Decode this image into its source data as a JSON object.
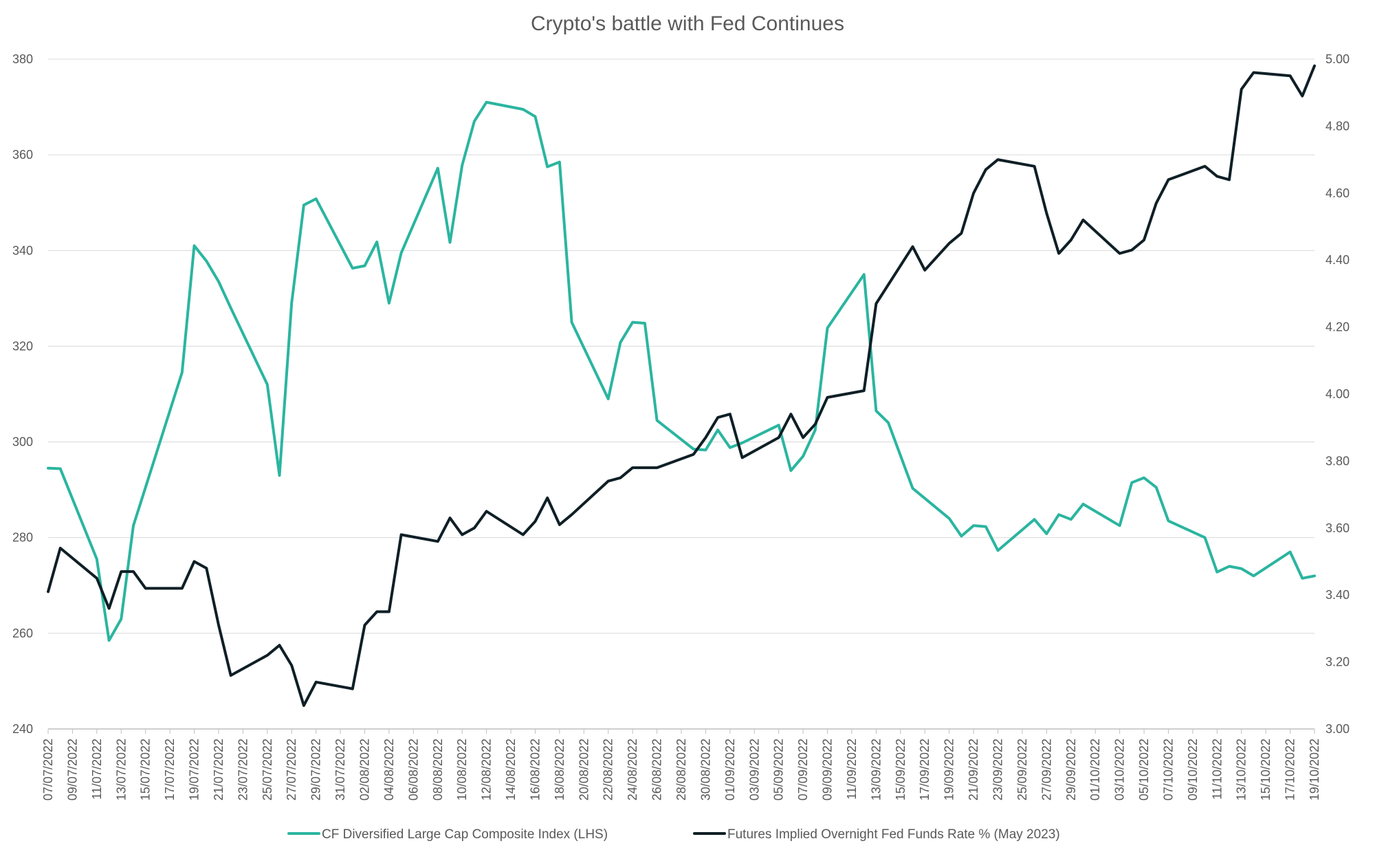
{
  "colors": {
    "lhs_series": "#2bb5a0",
    "rhs_series": "#0f1f26",
    "grid": "#d9d9d9",
    "text": "#595959"
  },
  "chart_data": {
    "type": "line",
    "title": "Crypto's battle with Fed Continues",
    "grid": true,
    "legend_position": "bottom",
    "x_tick_labels": [
      "07/07/2022",
      "09/07/2022",
      "11/07/2022",
      "13/07/2022",
      "15/07/2022",
      "17/07/2022",
      "19/07/2022",
      "21/07/2022",
      "23/07/2022",
      "25/07/2022",
      "27/07/2022",
      "29/07/2022",
      "31/07/2022",
      "02/08/2022",
      "04/08/2022",
      "06/08/2022",
      "08/08/2022",
      "10/08/2022",
      "12/08/2022",
      "14/08/2022",
      "16/08/2022",
      "18/08/2022",
      "20/08/2022",
      "22/08/2022",
      "24/08/2022",
      "26/08/2022",
      "28/08/2022",
      "30/08/2022",
      "01/09/2022",
      "03/09/2022",
      "05/09/2022",
      "07/09/2022",
      "09/09/2022",
      "11/09/2022",
      "13/09/2022",
      "15/09/2022",
      "17/09/2022",
      "19/09/2022",
      "21/09/2022",
      "23/09/2022",
      "25/09/2022",
      "27/09/2022",
      "29/09/2022",
      "01/10/2022",
      "03/10/2022",
      "05/10/2022",
      "07/10/2022",
      "09/10/2022",
      "11/10/2022",
      "13/10/2022",
      "15/10/2022",
      "17/10/2022",
      "19/10/2022"
    ],
    "y_left": {
      "ylim": [
        240,
        380
      ],
      "ticks": [
        "240",
        "260",
        "280",
        "300",
        "320",
        "340",
        "360",
        "380"
      ]
    },
    "y_right": {
      "ylim": [
        3.0,
        5.0
      ],
      "ticks": [
        "3.00",
        "3.20",
        "3.40",
        "3.60",
        "3.80",
        "4.00",
        "4.20",
        "4.40",
        "4.60",
        "4.80",
        "5.00"
      ]
    },
    "series": [
      {
        "name": "CF Diversified Large Cap Composite Index (LHS)",
        "axis": "left",
        "points": [
          [
            "07/07/2022",
            294.5
          ],
          [
            "08/07/2022",
            294.4
          ],
          [
            "11/07/2022",
            275.5
          ],
          [
            "12/07/2022",
            258.5
          ],
          [
            "13/07/2022",
            263.0
          ],
          [
            "14/07/2022",
            282.5
          ],
          [
            "18/07/2022",
            314.5
          ],
          [
            "19/07/2022",
            341.0
          ],
          [
            "20/07/2022",
            337.8
          ],
          [
            "21/07/2022",
            333.5
          ],
          [
            "22/07/2022",
            328.0
          ],
          [
            "25/07/2022",
            312.0
          ],
          [
            "26/07/2022",
            293.0
          ],
          [
            "27/07/2022",
            329.0
          ],
          [
            "28/07/2022",
            349.5
          ],
          [
            "29/07/2022",
            350.8
          ],
          [
            "01/08/2022",
            336.3
          ],
          [
            "02/08/2022",
            336.8
          ],
          [
            "03/08/2022",
            341.8
          ],
          [
            "04/08/2022",
            329.0
          ],
          [
            "05/08/2022",
            339.5
          ],
          [
            "08/08/2022",
            357.2
          ],
          [
            "09/08/2022",
            341.7
          ],
          [
            "10/08/2022",
            357.8
          ],
          [
            "11/08/2022",
            367.0
          ],
          [
            "12/08/2022",
            371.0
          ],
          [
            "15/08/2022",
            369.5
          ],
          [
            "16/08/2022",
            368.0
          ],
          [
            "17/08/2022",
            357.5
          ],
          [
            "18/08/2022",
            358.5
          ],
          [
            "19/08/2022",
            325.0
          ],
          [
            "22/08/2022",
            309.0
          ],
          [
            "23/08/2022",
            320.8
          ],
          [
            "24/08/2022",
            325.0
          ],
          [
            "25/08/2022",
            324.8
          ],
          [
            "26/08/2022",
            304.5
          ],
          [
            "29/08/2022",
            298.5
          ],
          [
            "30/08/2022",
            298.3
          ],
          [
            "31/08/2022",
            302.5
          ],
          [
            "01/09/2022",
            298.8
          ],
          [
            "02/09/2022",
            299.8
          ],
          [
            "05/09/2022",
            303.5
          ],
          [
            "06/09/2022",
            294.0
          ],
          [
            "07/09/2022",
            297.0
          ],
          [
            "08/09/2022",
            302.5
          ],
          [
            "09/09/2022",
            323.8
          ],
          [
            "12/09/2022",
            335.0
          ],
          [
            "13/09/2022",
            306.5
          ],
          [
            "14/09/2022",
            304.0
          ],
          [
            "16/09/2022",
            290.3
          ],
          [
            "19/09/2022",
            284.0
          ],
          [
            "20/09/2022",
            280.3
          ],
          [
            "21/09/2022",
            282.5
          ],
          [
            "22/09/2022",
            282.3
          ],
          [
            "23/09/2022",
            277.3
          ],
          [
            "26/09/2022",
            283.8
          ],
          [
            "27/09/2022",
            280.8
          ],
          [
            "28/09/2022",
            284.8
          ],
          [
            "29/09/2022",
            283.8
          ],
          [
            "30/09/2022",
            287.0
          ],
          [
            "03/10/2022",
            282.5
          ],
          [
            "04/10/2022",
            291.5
          ],
          [
            "05/10/2022",
            292.5
          ],
          [
            "06/10/2022",
            290.5
          ],
          [
            "07/10/2022",
            283.5
          ],
          [
            "10/10/2022",
            280.0
          ],
          [
            "11/10/2022",
            272.8
          ],
          [
            "12/10/2022",
            274.0
          ],
          [
            "13/10/2022",
            273.5
          ],
          [
            "14/10/2022",
            272.0
          ],
          [
            "17/10/2022",
            277.0
          ],
          [
            "18/10/2022",
            271.5
          ],
          [
            "19/10/2022",
            272.0
          ]
        ]
      },
      {
        "name": "Futures Implied Overnight Fed Funds Rate % (May 2023)",
        "axis": "right",
        "points": [
          [
            "07/07/2022",
            3.41
          ],
          [
            "08/07/2022",
            3.54
          ],
          [
            "11/07/2022",
            3.45
          ],
          [
            "12/07/2022",
            3.36
          ],
          [
            "13/07/2022",
            3.47
          ],
          [
            "14/07/2022",
            3.47
          ],
          [
            "15/07/2022",
            3.42
          ],
          [
            "18/07/2022",
            3.42
          ],
          [
            "19/07/2022",
            3.5
          ],
          [
            "20/07/2022",
            3.48
          ],
          [
            "21/07/2022",
            3.31
          ],
          [
            "22/07/2022",
            3.16
          ],
          [
            "25/07/2022",
            3.22
          ],
          [
            "26/07/2022",
            3.25
          ],
          [
            "27/07/2022",
            3.19
          ],
          [
            "28/07/2022",
            3.07
          ],
          [
            "29/07/2022",
            3.14
          ],
          [
            "01/08/2022",
            3.12
          ],
          [
            "02/08/2022",
            3.31
          ],
          [
            "03/08/2022",
            3.35
          ],
          [
            "04/08/2022",
            3.35
          ],
          [
            "05/08/2022",
            3.58
          ],
          [
            "08/08/2022",
            3.56
          ],
          [
            "09/08/2022",
            3.63
          ],
          [
            "10/08/2022",
            3.58
          ],
          [
            "11/08/2022",
            3.6
          ],
          [
            "12/08/2022",
            3.65
          ],
          [
            "15/08/2022",
            3.58
          ],
          [
            "16/08/2022",
            3.62
          ],
          [
            "17/08/2022",
            3.69
          ],
          [
            "18/08/2022",
            3.61
          ],
          [
            "19/08/2022",
            3.64
          ],
          [
            "22/08/2022",
            3.74
          ],
          [
            "23/08/2022",
            3.75
          ],
          [
            "24/08/2022",
            3.78
          ],
          [
            "25/08/2022",
            3.78
          ],
          [
            "26/08/2022",
            3.78
          ],
          [
            "29/08/2022",
            3.82
          ],
          [
            "30/08/2022",
            3.87
          ],
          [
            "31/08/2022",
            3.93
          ],
          [
            "01/09/2022",
            3.94
          ],
          [
            "02/09/2022",
            3.81
          ],
          [
            "05/09/2022",
            3.87
          ],
          [
            "06/09/2022",
            3.94
          ],
          [
            "07/09/2022",
            3.87
          ],
          [
            "08/09/2022",
            3.91
          ],
          [
            "09/09/2022",
            3.99
          ],
          [
            "12/09/2022",
            4.01
          ],
          [
            "13/09/2022",
            4.27
          ],
          [
            "16/09/2022",
            4.44
          ],
          [
            "17/09/2022",
            4.37
          ],
          [
            "19/09/2022",
            4.45
          ],
          [
            "20/09/2022",
            4.48
          ],
          [
            "21/09/2022",
            4.6
          ],
          [
            "22/09/2022",
            4.67
          ],
          [
            "23/09/2022",
            4.7
          ],
          [
            "26/09/2022",
            4.68
          ],
          [
            "27/09/2022",
            4.54
          ],
          [
            "28/09/2022",
            4.42
          ],
          [
            "29/09/2022",
            4.46
          ],
          [
            "30/09/2022",
            4.52
          ],
          [
            "03/10/2022",
            4.42
          ],
          [
            "04/10/2022",
            4.43
          ],
          [
            "05/10/2022",
            4.46
          ],
          [
            "06/10/2022",
            4.57
          ],
          [
            "07/10/2022",
            4.64
          ],
          [
            "10/10/2022",
            4.68
          ],
          [
            "11/10/2022",
            4.65
          ],
          [
            "12/10/2022",
            4.64
          ],
          [
            "13/10/2022",
            4.91
          ],
          [
            "14/10/2022",
            4.96
          ],
          [
            "17/10/2022",
            4.95
          ],
          [
            "18/10/2022",
            4.89
          ],
          [
            "19/10/2022",
            4.98
          ]
        ]
      }
    ]
  }
}
